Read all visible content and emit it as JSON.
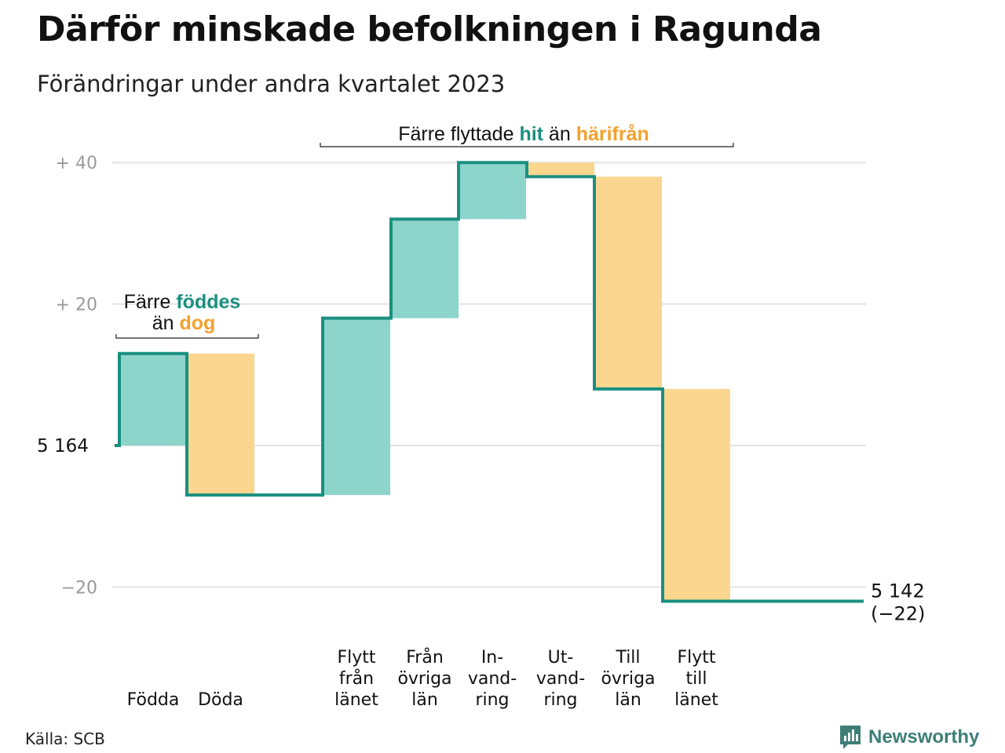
{
  "title": "Därför minskade befolkningen i Ragunda",
  "subtitle": "Förändringar under andra kvartalet 2023",
  "source": "Källa: SCB",
  "brand": "Newsworthy",
  "colors": {
    "increase": "#8dd4cb",
    "decrease": "#fad68f",
    "line": "#1a9080",
    "grid": "#e3e3e3",
    "teal_text": "#1a9080",
    "orange_text": "#f2a12e"
  },
  "chart_data": {
    "type": "waterfall",
    "start_value": 5164,
    "end_value": 5142,
    "start_label": "5  164",
    "end_label": "5 142",
    "end_change_label": "(−22)",
    "ylim": [
      -25,
      42
    ],
    "yticks": [
      {
        "value": 40,
        "label": "+  40"
      },
      {
        "value": 20,
        "label": "+  20"
      },
      {
        "value": -20,
        "label": "−20"
      }
    ],
    "categories": [
      {
        "label": [
          "Födda"
        ],
        "value": 13
      },
      {
        "label": [
          "Döda"
        ],
        "value": -20
      },
      {
        "label": [
          "Flytt",
          "från",
          "länet"
        ],
        "value": 25
      },
      {
        "label": [
          "Från",
          "övriga",
          "län"
        ],
        "value": 14
      },
      {
        "label": [
          "In-",
          "vand-",
          "ring"
        ],
        "value": 8
      },
      {
        "label": [
          "Ut-",
          "vand-",
          "ring"
        ],
        "value": -2
      },
      {
        "label": [
          "Till",
          "övriga",
          "län"
        ],
        "value": -30
      },
      {
        "label": [
          "Flytt",
          "till",
          "länet"
        ],
        "value": -30
      }
    ],
    "annotations": [
      {
        "id": "born",
        "line1_pre": "Färre ",
        "line1_em": "föddes",
        "line2_pre": "än ",
        "line2_em": "dog"
      },
      {
        "id": "moved",
        "pre": "Färre flyttade ",
        "em1": "hit",
        "mid": " än ",
        "em2": "härifrån"
      }
    ]
  }
}
